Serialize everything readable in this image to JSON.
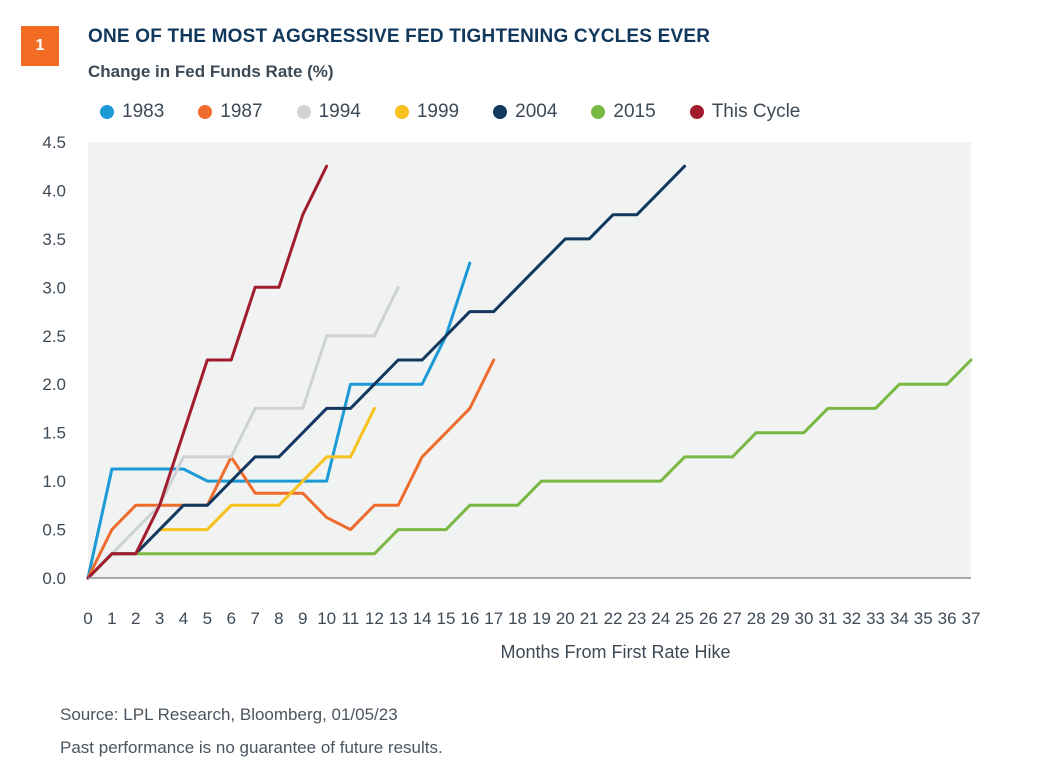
{
  "header": {
    "badge": "1",
    "title": "ONE OF THE MOST AGGRESSIVE FED TIGHTENING CYCLES EVER",
    "subtitle": "Change in Fed Funds Rate (%)"
  },
  "colors": {
    "badge": "#f26c23",
    "title": "#10375c",
    "plot_bg": "#f1f2f2",
    "axis": "#8a9096"
  },
  "footer": {
    "source": "Source: LPL Research, Bloomberg, 01/05/23",
    "disclaimer": "Past performance is no guarantee of future results."
  },
  "chart_data": {
    "type": "line",
    "title": "ONE OF THE MOST AGGRESSIVE FED TIGHTENING CYCLES EVER",
    "ylabel": "Change in Fed Funds Rate (%)",
    "xlabel": "Months From First Rate Hike",
    "xlim": [
      0,
      37
    ],
    "ylim": [
      0,
      4.5
    ],
    "yticks": [
      "0.0",
      "0.5",
      "1.0",
      "1.5",
      "2.0",
      "2.5",
      "3.0",
      "3.5",
      "4.0",
      "4.5"
    ],
    "xticks": [
      "0",
      "1",
      "2",
      "3",
      "4",
      "5",
      "6",
      "7",
      "8",
      "9",
      "10",
      "11",
      "12",
      "13",
      "14",
      "15",
      "16",
      "17",
      "18",
      "19",
      "20",
      "21",
      "22",
      "23",
      "24",
      "25",
      "26",
      "27",
      "28",
      "29",
      "30",
      "31",
      "32",
      "33",
      "34",
      "35",
      "36",
      "37"
    ],
    "grid": false,
    "legend_position": "top",
    "series": [
      {
        "name": "1983",
        "color": "#1b9ad6",
        "x": [
          0,
          1,
          2,
          3,
          4,
          5,
          6,
          7,
          8,
          9,
          10,
          11,
          12,
          13,
          14,
          15,
          16
        ],
        "y": [
          0,
          1.125,
          1.125,
          1.125,
          1.125,
          1.0,
          1.0,
          1.0,
          1.0,
          1.0,
          1.0,
          2.0,
          2.0,
          2.0,
          2.0,
          2.5,
          3.25
        ]
      },
      {
        "name": "1987",
        "color": "#ee6d2e",
        "x": [
          0,
          1,
          2,
          3,
          4,
          5,
          6,
          7,
          8,
          9,
          10,
          11,
          12,
          13,
          14,
          15,
          16,
          17
        ],
        "y": [
          0,
          0.5,
          0.75,
          0.75,
          0.75,
          0.75,
          1.25,
          0.875,
          0.875,
          0.875,
          0.625,
          0.5,
          0.75,
          0.75,
          1.25,
          1.5,
          1.75,
          2.25
        ]
      },
      {
        "name": "1994",
        "color": "#cfd2d4",
        "x": [
          0,
          1,
          2,
          3,
          4,
          5,
          6,
          7,
          8,
          9,
          10,
          11,
          12,
          13
        ],
        "y": [
          0,
          0.25,
          0.5,
          0.75,
          1.25,
          1.25,
          1.25,
          1.75,
          1.75,
          1.75,
          2.5,
          2.5,
          2.5,
          3.0
        ]
      },
      {
        "name": "1999",
        "color": "#f6c21d",
        "x": [
          3,
          4,
          5,
          6,
          7,
          8,
          9,
          10,
          11,
          12
        ],
        "y": [
          0.5,
          0.5,
          0.5,
          0.75,
          0.75,
          0.75,
          1.0,
          1.25,
          1.25,
          1.75
        ]
      },
      {
        "name": "2004",
        "color": "#12385f",
        "x": [
          0,
          1,
          2,
          3,
          4,
          5,
          6,
          7,
          8,
          9,
          10,
          11,
          12,
          13,
          14,
          15,
          16,
          17,
          18,
          19,
          20,
          21,
          22,
          23,
          24,
          25
        ],
        "y": [
          0,
          0.25,
          0.25,
          0.5,
          0.75,
          0.75,
          1.0,
          1.25,
          1.25,
          1.5,
          1.75,
          1.75,
          2.0,
          2.25,
          2.25,
          2.5,
          2.75,
          2.75,
          3.0,
          3.25,
          3.5,
          3.5,
          3.75,
          3.75,
          4.0,
          4.25
        ]
      },
      {
        "name": "2015",
        "color": "#78b843",
        "x": [
          0,
          1,
          2,
          3,
          4,
          5,
          6,
          7,
          8,
          9,
          10,
          11,
          12,
          13,
          14,
          15,
          16,
          17,
          18,
          19,
          20,
          21,
          22,
          23,
          24,
          25,
          26,
          27,
          28,
          29,
          30,
          31,
          32,
          33,
          34,
          35,
          36,
          37
        ],
        "y": [
          0,
          0.25,
          0.25,
          0.25,
          0.25,
          0.25,
          0.25,
          0.25,
          0.25,
          0.25,
          0.25,
          0.25,
          0.25,
          0.5,
          0.5,
          0.5,
          0.75,
          0.75,
          0.75,
          1.0,
          1.0,
          1.0,
          1.0,
          1.0,
          1.0,
          1.25,
          1.25,
          1.25,
          1.5,
          1.5,
          1.5,
          1.75,
          1.75,
          1.75,
          2.0,
          2.0,
          2.0,
          2.25
        ]
      },
      {
        "name": "This Cycle",
        "color": "#a11d2e",
        "x": [
          0,
          1,
          2,
          3,
          4,
          5,
          6,
          7,
          8,
          9,
          10
        ],
        "y": [
          0,
          0.25,
          0.25,
          0.75,
          1.5,
          2.25,
          2.25,
          3.0,
          3.0,
          3.75,
          4.25
        ]
      }
    ]
  }
}
